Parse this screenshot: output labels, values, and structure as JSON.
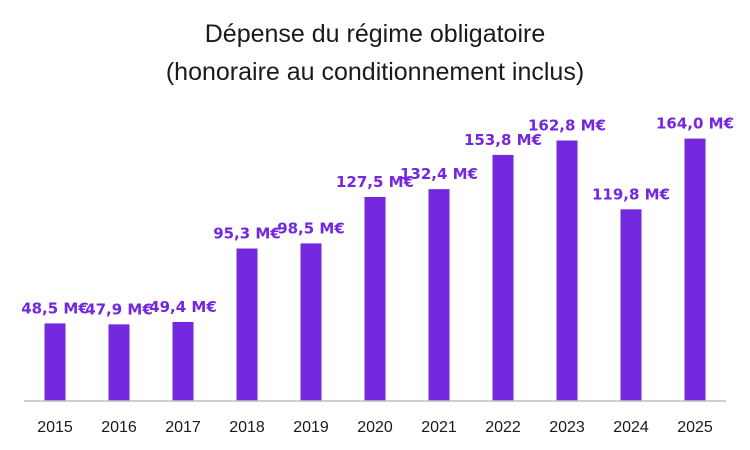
{
  "chart_data": {
    "type": "bar",
    "title_lines": [
      "Dépense du régime obligatoire",
      "(honoraire au conditionnement inclus)"
    ],
    "xlabel": "",
    "ylabel": "",
    "categories": [
      "2015",
      "2016",
      "2017",
      "2018",
      "2019",
      "2020",
      "2021",
      "2022",
      "2023",
      "2024",
      "2025"
    ],
    "values": [
      48.5,
      47.9,
      49.4,
      95.3,
      98.5,
      127.5,
      132.4,
      153.8,
      162.8,
      119.8,
      164.0
    ],
    "data_labels": [
      "48,5  M€",
      "47,9  M€",
      "49,4  M€",
      "95,3  M€",
      "98,5  M€",
      "127,5  M€",
      "132,4  M€",
      "153,8  M€",
      "162,8  M€",
      "119,8  M€",
      "164,0  M€"
    ],
    "grid": false,
    "legend": "none",
    "bar_color": "#7327DE",
    "label_color": "#7327DE",
    "axis_color": "#BFBFBF"
  }
}
